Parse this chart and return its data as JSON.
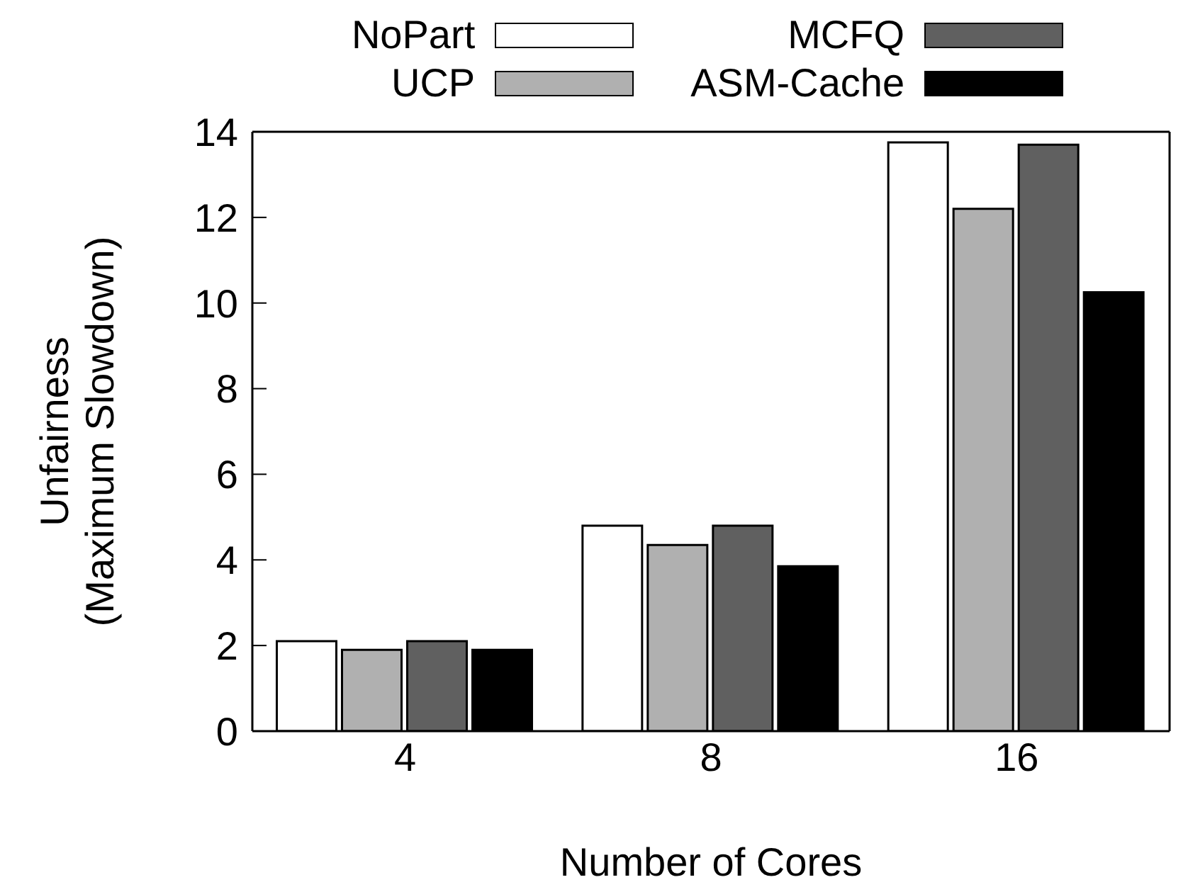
{
  "chart_data": {
    "type": "bar",
    "xlabel": "Number of Cores",
    "ylabel": "Unfairness\n(Maximum Slowdown)",
    "categories": [
      "4",
      "8",
      "16"
    ],
    "series": [
      {
        "name": "NoPart",
        "color": "#ffffff",
        "values": [
          2.1,
          4.8,
          13.75
        ]
      },
      {
        "name": "UCP",
        "color": "#b0b0b0",
        "values": [
          1.9,
          4.35,
          12.2
        ]
      },
      {
        "name": "MCFQ",
        "color": "#606060",
        "values": [
          2.1,
          4.8,
          13.7
        ]
      },
      {
        "name": "ASM-Cache",
        "color": "#000000",
        "values": [
          1.9,
          3.85,
          10.25
        ]
      }
    ],
    "ylim": [
      0,
      14
    ],
    "yticks": [
      0,
      2,
      4,
      6,
      8,
      10,
      12,
      14
    ],
    "grid": false,
    "legend": "top"
  }
}
